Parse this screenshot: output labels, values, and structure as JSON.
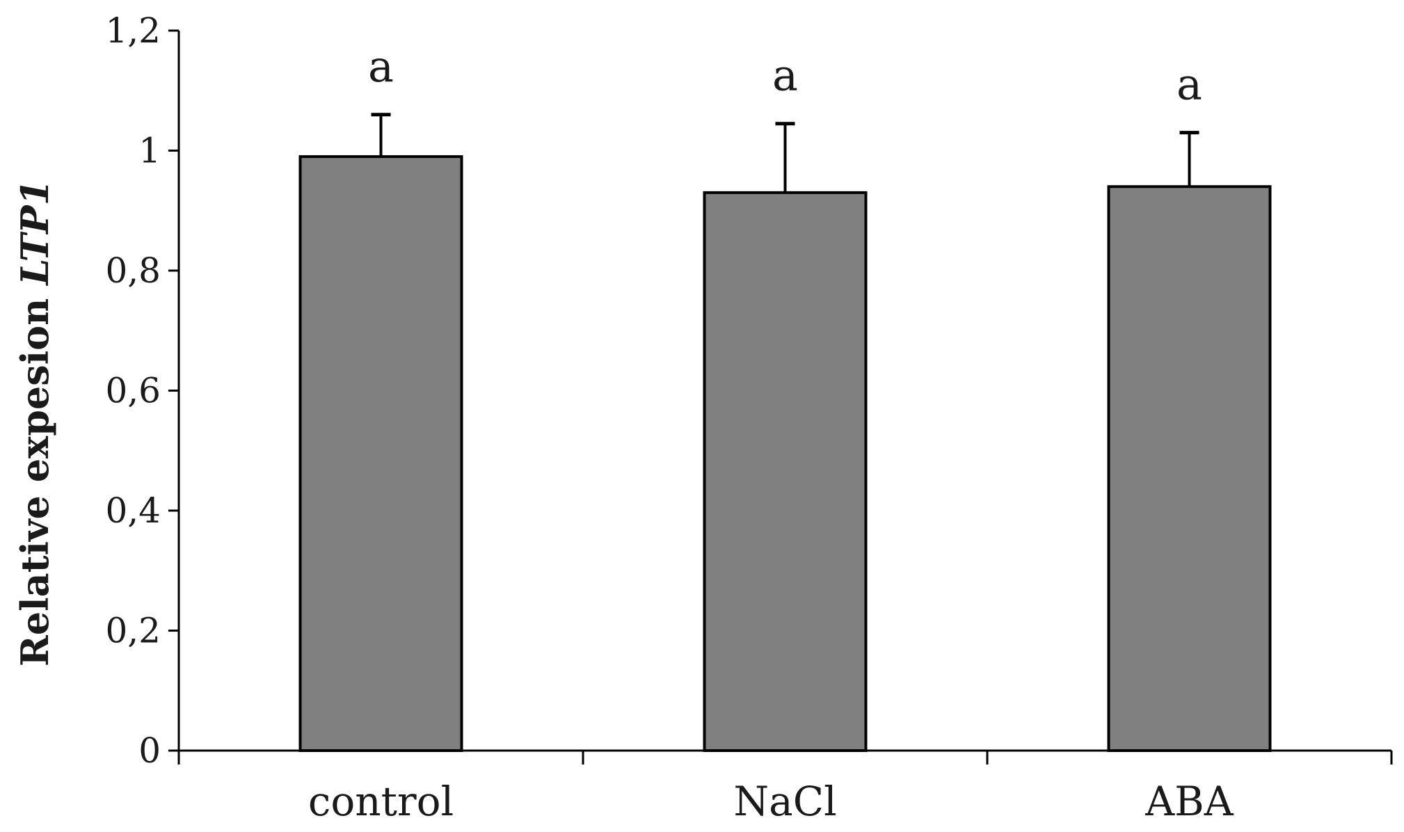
{
  "chart_data": {
    "type": "bar",
    "categories": [
      "control",
      "NaCl",
      "ABA"
    ],
    "values": [
      0.99,
      0.93,
      0.94
    ],
    "error_upper": [
      1.06,
      1.045,
      1.03
    ],
    "significance_letters": [
      "a",
      "a",
      "a"
    ],
    "ylabel": "Relative expesion ",
    "ylabel_italic": "LTP1",
    "ylim": [
      0,
      1.2
    ],
    "yticks": [
      0,
      0.2,
      0.4,
      0.6,
      0.8,
      1,
      1.2
    ],
    "ytick_labels": [
      "0",
      "0,2",
      "0,4",
      "0,6",
      "0,8",
      "1",
      "1,2"
    ],
    "grid": false,
    "bar_color": "#808080",
    "edge_color": "#000000"
  }
}
